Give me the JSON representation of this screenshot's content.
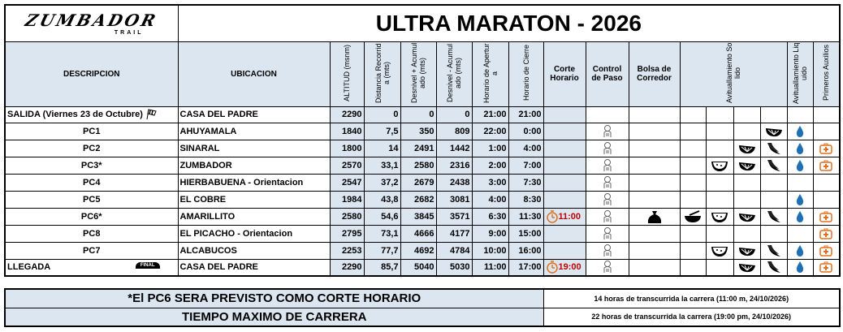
{
  "header": {
    "logo": {
      "name": "ZUMBADOR",
      "sub": "TRAIL"
    },
    "title": "ULTRA MARATON - 2026"
  },
  "columns": [
    "DESCRIPCION",
    "UBICACION",
    "ALTITUD (msnm)",
    "Distancia Recorrida (mts)",
    "Desnivel + Acumulado (mts)",
    "Desnivel - Acumulado (mts)",
    "Horario de Apertura",
    "Horario de Cierre",
    "Corte Horario",
    "Control de Paso",
    "Bolsa de Corredor",
    "Avituallamiento Solido",
    "Avituallamiento Liquido",
    "Primeros Auxilios"
  ],
  "rows": [
    [
      "SALIDA (Viernes 23 de Octubre)",
      "CASA DEL PADRE",
      "2290",
      "0",
      "0",
      "0",
      "21:00",
      "21:00"
    ],
    [
      "PC1",
      "AHUYAMALA",
      "1840",
      "7,5",
      "350",
      "809",
      "22:00",
      "0:00"
    ],
    [
      "PC2",
      "SINARAL",
      "1800",
      "14",
      "2491",
      "1442",
      "1:00",
      "4:00"
    ],
    [
      "PC3*",
      "ZUMBADOR",
      "2570",
      "33,1",
      "2580",
      "2316",
      "2:00",
      "7:00"
    ],
    [
      "PC4",
      "HIERBABUENA - Orientacion",
      "2547",
      "37,2",
      "2679",
      "2438",
      "3:00",
      "7:30"
    ],
    [
      "PC5",
      "EL COBRE",
      "1984",
      "43,8",
      "2682",
      "3081",
      "4:00",
      "8:30"
    ],
    [
      "PC6*",
      "AMARILLITO",
      "2580",
      "54,6",
      "3845",
      "3571",
      "6:30",
      "11:30",
      "11:00"
    ],
    [
      "PC8",
      "EL PICACHO - Orientacion",
      "2795",
      "73,1",
      "4666",
      "4177",
      "9:00",
      "15:00"
    ],
    [
      "PC7",
      "ALCABUCOS",
      "2253",
      "77,7",
      "4692",
      "4784",
      "10:00",
      "16:00"
    ],
    [
      "LLEGADA",
      "CASA DEL PADRE",
      "2290",
      "85,7",
      "5040",
      "5030",
      "11:00",
      "17:00",
      "19:00"
    ]
  ],
  "finish_badge": "FINAL",
  "notes": [
    [
      "*El PC6 SERA PREVISTO COMO CORTE HORARIO",
      "14 horas de transcurrida la carrera (11:00 m, 24/10/2026)"
    ],
    [
      "TIEMPO MAXIMO DE CARRERA",
      "22 horas de transcurrida la carrera (19:00 pm, 24/10/2026)"
    ]
  ]
}
